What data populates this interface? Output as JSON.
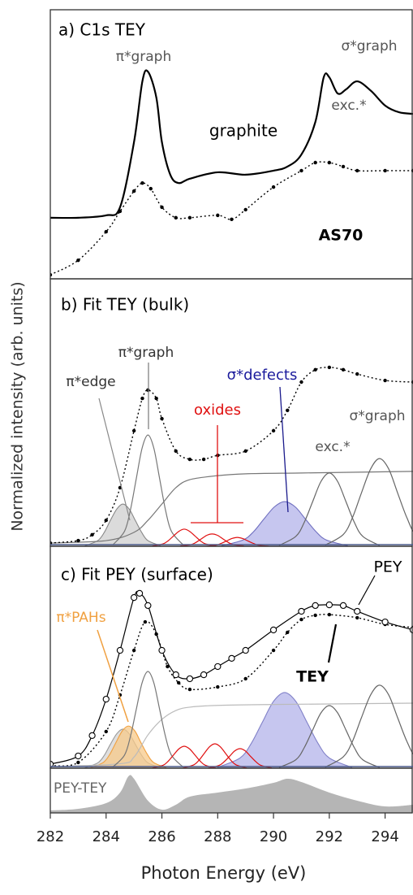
{
  "chart_data": [
    {
      "type": "line",
      "title": "a) C1s TEY",
      "xlim": [
        282,
        295
      ],
      "ylim": [
        0,
        1
      ],
      "annotations": [
        {
          "text": "π*graph",
          "color": "#555555"
        },
        {
          "text": "σ*graph",
          "color": "#555555"
        },
        {
          "text": "exc.*",
          "color": "#555555"
        },
        {
          "text": "graphite",
          "color": "#000000"
        },
        {
          "text": "AS70",
          "color": "#000000",
          "bold": true
        }
      ],
      "series": [
        {
          "name": "graphite",
          "style": "line",
          "color": "#000000",
          "x": [
            282,
            283,
            284,
            284.5,
            285,
            285.3,
            285.5,
            285.8,
            286,
            286.3,
            286.6,
            287,
            288,
            289,
            290,
            290.5,
            291,
            291.5,
            291.8,
            292,
            292.3,
            292.6,
            293,
            293.5,
            294,
            294.5,
            295
          ],
          "values": [
            0.227,
            0.227,
            0.236,
            0.266,
            0.508,
            0.734,
            0.77,
            0.674,
            0.508,
            0.387,
            0.356,
            0.372,
            0.396,
            0.387,
            0.402,
            0.417,
            0.462,
            0.583,
            0.749,
            0.749,
            0.689,
            0.704,
            0.734,
            0.698,
            0.644,
            0.619,
            0.613
          ]
        },
        {
          "name": "AS70",
          "style": "dots",
          "color": "#000000",
          "x": [
            282,
            283,
            284,
            284.5,
            285,
            285.3,
            285.6,
            286,
            286.5,
            287,
            288,
            288.5,
            289,
            290,
            291,
            291.5,
            292,
            292.5,
            293,
            294,
            295
          ],
          "values": [
            0.015,
            0.069,
            0.175,
            0.251,
            0.326,
            0.356,
            0.335,
            0.266,
            0.227,
            0.227,
            0.236,
            0.221,
            0.257,
            0.341,
            0.402,
            0.432,
            0.432,
            0.417,
            0.402,
            0.402,
            0.402
          ]
        }
      ]
    },
    {
      "type": "line",
      "title": "b) Fit TEY (bulk)",
      "xlim": [
        282,
        295
      ],
      "ylim": [
        0,
        1
      ],
      "annotations": [
        {
          "text": "π*graph",
          "color": "#333333"
        },
        {
          "text": "π*edge",
          "color": "#333333"
        },
        {
          "text": "σ*defects",
          "color": "#1a1a9c"
        },
        {
          "text": "oxides",
          "color": "#e01010"
        },
        {
          "text": "σ*graph",
          "color": "#555555"
        },
        {
          "text": "exc.*",
          "color": "#555555"
        }
      ],
      "series": [
        {
          "style": "fill",
          "color": "#888888",
          "fill": "#cfcfcf",
          "x": [
            283.25,
            283.7,
            283.93,
            284.15,
            284.38,
            284.6,
            284.83,
            285.05,
            285.28,
            285.5,
            285.95
          ],
          "values": [
            0.002,
            0.021,
            0.051,
            0.096,
            0.139,
            0.158,
            0.139,
            0.096,
            0.051,
            0.021,
            0.002
          ]
        },
        {
          "style": "fill",
          "color": "#7070c0",
          "fill": "#b3b3ea",
          "x": [
            288.15,
            288.9,
            289.28,
            289.65,
            290.03,
            290.4,
            290.78,
            291.15,
            291.53,
            291.9,
            292.65
          ],
          "values": [
            0.002,
            0.023,
            0.054,
            0.101,
            0.147,
            0.167,
            0.147,
            0.101,
            0.054,
            0.023,
            0.002
          ]
        },
        {
          "style": "line",
          "color": "#777777",
          "x": [
            282,
            284,
            285,
            285.5,
            286,
            286.5,
            287,
            288,
            289,
            291,
            293,
            295
          ],
          "values": [
            0.012,
            0.021,
            0.052,
            0.097,
            0.158,
            0.219,
            0.249,
            0.264,
            0.271,
            0.274,
            0.277,
            0.28
          ]
        },
        {
          "style": "line",
          "color": "#777777",
          "x": [
            284.24,
            284.66,
            284.87,
            285.08,
            285.29,
            285.5,
            285.71,
            285.92,
            286.13,
            286.34,
            286.76
          ],
          "values": [
            0.005,
            0.056,
            0.135,
            0.252,
            0.367,
            0.416,
            0.367,
            0.252,
            0.135,
            0.056,
            0.005
          ]
        },
        {
          "style": "line",
          "color": "#e01010",
          "x": [
            285.66,
            286.04,
            286.23,
            286.42,
            286.61,
            286.8,
            286.99,
            287.18,
            287.37,
            287.56,
            287.94
          ],
          "values": [
            0.001,
            0.009,
            0.021,
            0.039,
            0.056,
            0.064,
            0.056,
            0.039,
            0.021,
            0.009,
            0.001
          ]
        },
        {
          "style": "line",
          "color": "#e01010",
          "x": [
            286.66,
            287.04,
            287.23,
            287.42,
            287.61,
            287.8,
            287.99,
            288.18,
            288.37,
            288.56,
            288.94
          ],
          "values": [
            0.001,
            0.006,
            0.015,
            0.028,
            0.041,
            0.046,
            0.041,
            0.028,
            0.015,
            0.006,
            0.001
          ]
        },
        {
          "style": "line",
          "color": "#e01010",
          "x": [
            287.56,
            287.94,
            288.13,
            288.32,
            288.51,
            288.7,
            288.89,
            289.08,
            289.27,
            289.46,
            289.84
          ],
          "values": [
            0,
            0.004,
            0.011,
            0.02,
            0.029,
            0.033,
            0.029,
            0.02,
            0.011,
            0.004,
            0
          ]
        },
        {
          "style": "line",
          "color": "#666666",
          "x": [
            290.2,
            290.8,
            291.1,
            291.4,
            291.7,
            292,
            292.3,
            292.6,
            292.9,
            293.2,
            293.8
          ],
          "values": [
            0.003,
            0.037,
            0.089,
            0.166,
            0.242,
            0.274,
            0.242,
            0.166,
            0.089,
            0.037,
            0.003
          ]
        },
        {
          "style": "line",
          "color": "#666666",
          "x": [
            291.85,
            292.5,
            292.83,
            293.15,
            293.48,
            293.8,
            294.13,
            294.45,
            294.78,
            295.1,
            295.75
          ],
          "values": [
            0.004,
            0.044,
            0.107,
            0.199,
            0.289,
            0.328,
            0.289,
            0.199,
            0.107,
            0.044,
            0.004
          ]
        },
        {
          "style": "dots",
          "color": "#000000",
          "x": [
            282,
            283,
            283.5,
            284,
            284.5,
            285,
            285.3,
            285.5,
            285.8,
            286,
            286.5,
            287,
            287.5,
            288,
            289,
            290,
            290.5,
            291,
            291.5,
            292,
            292.5,
            293,
            294,
            295
          ],
          "values": [
            0.012,
            0.021,
            0.043,
            0.097,
            0.219,
            0.432,
            0.553,
            0.584,
            0.553,
            0.477,
            0.356,
            0.325,
            0.325,
            0.34,
            0.356,
            0.432,
            0.508,
            0.614,
            0.66,
            0.669,
            0.66,
            0.644,
            0.62,
            0.614
          ]
        }
      ]
    },
    {
      "type": "line",
      "title": "c) Fit PEY (surface)",
      "xlim": [
        282,
        295
      ],
      "ylim": [
        0,
        1
      ],
      "annotations": [
        {
          "text": "π*PAHs",
          "color": "#f0a040"
        },
        {
          "text": "PEY",
          "color": "#000000"
        },
        {
          "text": "TEY",
          "color": "#000000",
          "bold": true
        }
      ],
      "series": [
        {
          "style": "fill",
          "color": "#999999",
          "fill": "#d4d4d4",
          "x": [
            283.25,
            283.7,
            283.93,
            284.15,
            284.38,
            284.6,
            284.83,
            285.05,
            285.28,
            285.5,
            285.95
          ],
          "values": [
            0.002,
            0.024,
            0.057,
            0.107,
            0.155,
            0.176,
            0.155,
            0.107,
            0.057,
            0.024,
            0.002
          ]
        },
        {
          "style": "fill",
          "color": "#f0a040",
          "fill": "#f7c98a",
          "x": [
            283.45,
            283.9,
            284.13,
            284.35,
            284.58,
            284.8,
            285.03,
            285.25,
            285.48,
            285.7,
            286.15
          ],
          "values": [
            0.002,
            0.026,
            0.062,
            0.115,
            0.168,
            0.19,
            0.168,
            0.115,
            0.062,
            0.026,
            0.002
          ]
        },
        {
          "style": "fill",
          "color": "#8080c8",
          "fill": "#b3b3ea",
          "x": [
            288,
            288.8,
            289.2,
            289.6,
            290,
            290.4,
            290.8,
            291.2,
            291.6,
            292,
            292.8
          ],
          "values": [
            0.004,
            0.046,
            0.111,
            0.207,
            0.301,
            0.341,
            0.301,
            0.207,
            0.111,
            0.046,
            0.004
          ]
        },
        {
          "style": "line",
          "color": "#bbbbbb",
          "x": [
            282,
            284.5,
            285,
            285.5,
            286,
            286.5,
            287,
            288,
            290,
            295
          ],
          "values": [
            0.007,
            0.02,
            0.05,
            0.15,
            0.22,
            0.26,
            0.275,
            0.283,
            0.287,
            0.293
          ]
        },
        {
          "style": "line",
          "color": "#777777",
          "x": [
            284.24,
            284.66,
            284.87,
            285.08,
            285.29,
            285.5,
            285.71,
            285.92,
            286.13,
            286.34,
            286.76
          ],
          "values": [
            0.005,
            0.059,
            0.142,
            0.264,
            0.385,
            0.436,
            0.385,
            0.264,
            0.142,
            0.059,
            0.005
          ]
        },
        {
          "style": "line",
          "color": "#e01010",
          "x": [
            285.66,
            286.04,
            286.23,
            286.42,
            286.61,
            286.8,
            286.99,
            287.18,
            287.37,
            287.56,
            287.94
          ],
          "values": [
            0.001,
            0.013,
            0.032,
            0.06,
            0.087,
            0.099,
            0.087,
            0.06,
            0.032,
            0.013,
            0.001
          ]
        },
        {
          "style": "line",
          "color": "#e01010",
          "x": [
            286.76,
            287.14,
            287.33,
            287.52,
            287.71,
            287.9,
            288.09,
            288.28,
            288.47,
            288.66,
            289.04
          ],
          "values": [
            0.001,
            0.015,
            0.036,
            0.067,
            0.097,
            0.11,
            0.097,
            0.067,
            0.036,
            0.015,
            0.001
          ]
        },
        {
          "style": "line",
          "color": "#e01010",
          "x": [
            287.66,
            288.04,
            288.23,
            288.42,
            288.61,
            288.8,
            288.99,
            289.18,
            289.37,
            289.56,
            289.94
          ],
          "values": [
            0.001,
            0.012,
            0.029,
            0.053,
            0.078,
            0.088,
            0.078,
            0.053,
            0.029,
            0.012,
            0.001
          ]
        },
        {
          "style": "line",
          "color": "#666666",
          "x": [
            290.2,
            290.8,
            291.1,
            291.4,
            291.7,
            292,
            292.3,
            292.6,
            292.9,
            293.2,
            293.8
          ],
          "values": [
            0.003,
            0.038,
            0.092,
            0.171,
            0.249,
            0.282,
            0.249,
            0.171,
            0.092,
            0.038,
            0.003
          ]
        },
        {
          "style": "line",
          "color": "#666666",
          "x": [
            291.85,
            292.5,
            292.83,
            293.15,
            293.48,
            293.8,
            294.13,
            294.45,
            294.78,
            295.1,
            295.75
          ],
          "values": [
            0.004,
            0.051,
            0.121,
            0.227,
            0.33,
            0.374,
            0.33,
            0.227,
            0.121,
            0.051,
            0.004
          ]
        },
        {
          "name": "TEY",
          "style": "dots",
          "color": "#000000",
          "x": [
            282,
            283,
            284,
            284.5,
            285,
            285.4,
            285.8,
            286.2,
            286.6,
            287,
            288,
            289,
            290,
            290.5,
            291,
            291.5,
            292,
            293,
            294,
            295
          ],
          "values": [
            0.011,
            0.026,
            0.165,
            0.33,
            0.531,
            0.659,
            0.604,
            0.458,
            0.385,
            0.355,
            0.366,
            0.403,
            0.531,
            0.612,
            0.67,
            0.689,
            0.692,
            0.678,
            0.648,
            0.634
          ]
        },
        {
          "name": "PEY",
          "style": "circles",
          "color": "#000000",
          "x": [
            282,
            283,
            283.5,
            284,
            284.5,
            285,
            285.2,
            285.5,
            286,
            286.5,
            287,
            287.5,
            288,
            288.5,
            289,
            290,
            291,
            291.5,
            292,
            292.5,
            293,
            294,
            295
          ],
          "values": [
            0.018,
            0.055,
            0.147,
            0.311,
            0.531,
            0.769,
            0.788,
            0.733,
            0.531,
            0.421,
            0.403,
            0.421,
            0.458,
            0.495,
            0.531,
            0.623,
            0.707,
            0.733,
            0.736,
            0.733,
            0.707,
            0.659,
            0.623
          ]
        }
      ]
    },
    {
      "type": "line",
      "title": "PEY-TEY",
      "xlim": [
        282,
        295
      ],
      "ylim": [
        0,
        1
      ],
      "xticks": [
        282,
        284,
        286,
        288,
        290,
        292,
        294
      ],
      "xlabel": "Photon Energy (eV)",
      "ylabel": "Normalized intensity (arb. units)",
      "series": [
        {
          "style": "area",
          "color": "#b5b5b5",
          "x": [
            282,
            283,
            284,
            284.5,
            284.8,
            285,
            285.5,
            286,
            286.5,
            287,
            288,
            289,
            290,
            290.5,
            291,
            292,
            293,
            294,
            295
          ],
          "values": [
            0.055,
            0.091,
            0.218,
            0.455,
            0.818,
            0.764,
            0.273,
            0.073,
            0.182,
            0.364,
            0.455,
            0.545,
            0.673,
            0.764,
            0.691,
            0.455,
            0.273,
            0.145,
            0.182
          ]
        }
      ]
    }
  ]
}
